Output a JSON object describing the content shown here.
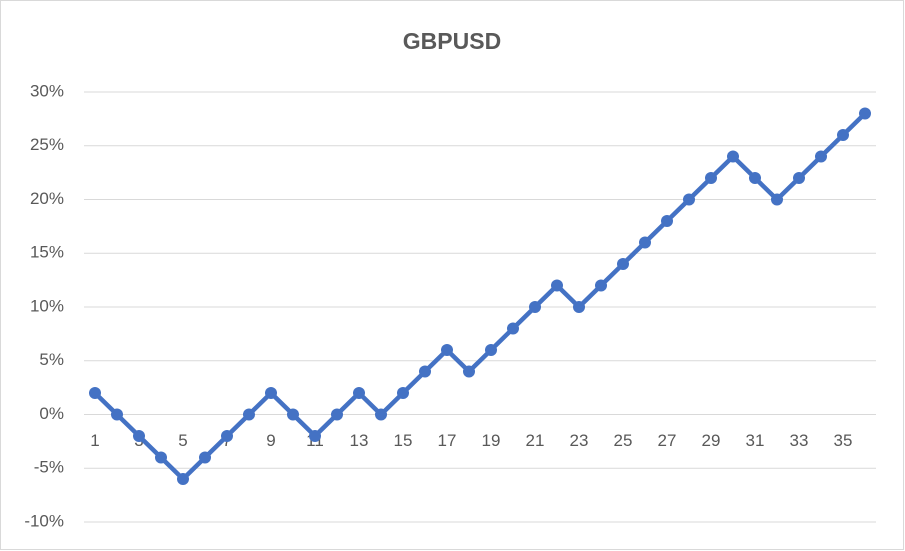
{
  "chart_data": {
    "type": "line",
    "title": "GBPUSD",
    "categories": [
      "1",
      null,
      "3",
      null,
      "5",
      null,
      "7",
      null,
      "9",
      null,
      "11",
      null,
      "13",
      null,
      "15",
      null,
      "17",
      null,
      "19",
      null,
      "21",
      null,
      "23",
      null,
      "25",
      null,
      "27",
      null,
      "29",
      null,
      "31",
      null,
      "33",
      null,
      "35",
      null
    ],
    "values": [
      2,
      0,
      -2,
      -4,
      -6,
      -4,
      -2,
      0,
      2,
      0,
      -2,
      0,
      2,
      0,
      2,
      4,
      6,
      4,
      6,
      8,
      10,
      12,
      10,
      12,
      14,
      16,
      18,
      20,
      22,
      24,
      22,
      20,
      22,
      24,
      26,
      28
    ],
    "color": "#4472c4",
    "ylim": [
      -10,
      30
    ],
    "yticks": [
      {
        "value": -10,
        "label": "-10%"
      },
      {
        "value": -5,
        "label": "-5%"
      },
      {
        "value": 0,
        "label": "0%"
      },
      {
        "value": 5,
        "label": "5%"
      },
      {
        "value": 10,
        "label": "10%"
      },
      {
        "value": 15,
        "label": "15%"
      },
      {
        "value": 20,
        "label": "20%"
      },
      {
        "value": 25,
        "label": "25%"
      },
      {
        "value": 30,
        "label": "30%"
      }
    ],
    "grid": true
  }
}
